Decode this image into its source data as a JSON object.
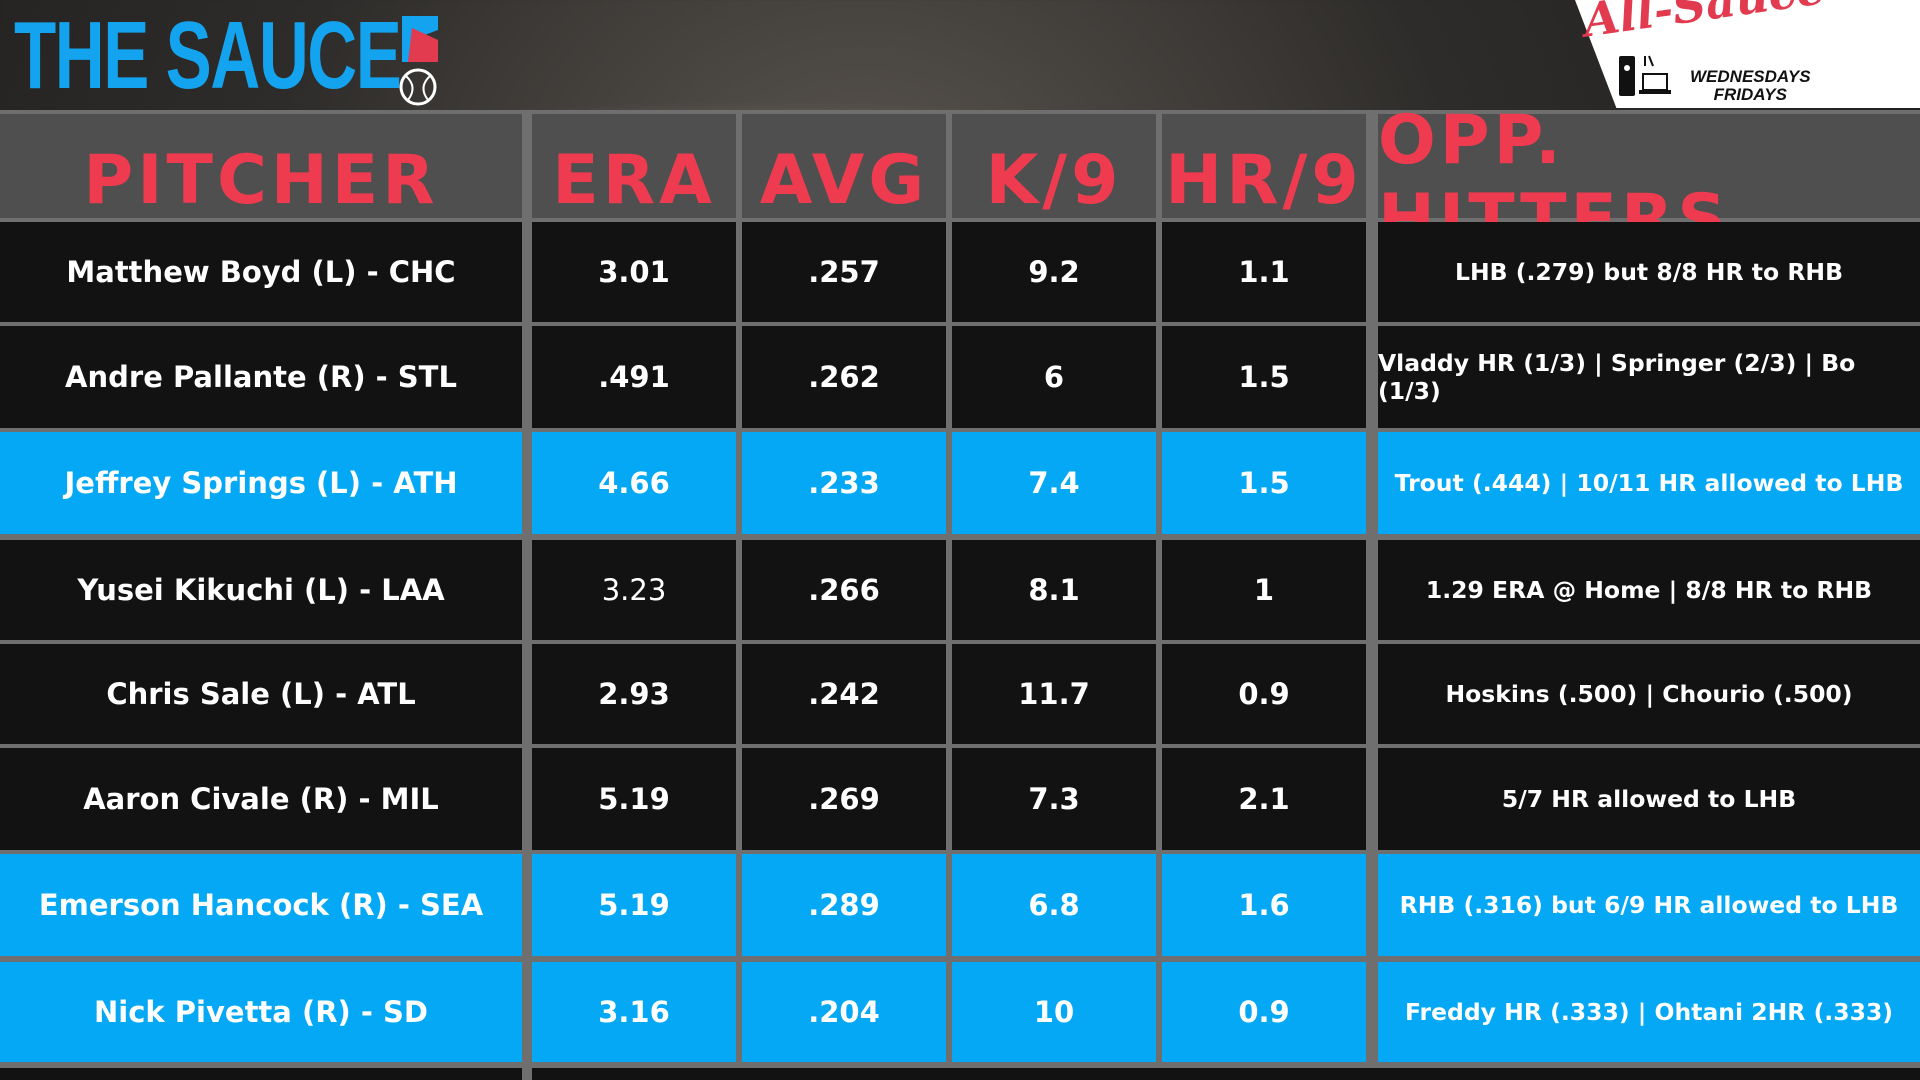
{
  "brand": {
    "title": "THE SAUCE"
  },
  "badge": {
    "script": "All-Sauce Team",
    "days": [
      "WEDNESDAYS",
      "FRIDAYS"
    ]
  },
  "colors": {
    "accent_blue": "#04a8f5",
    "header_red": "#ef3b50",
    "dark_row": "#121212"
  },
  "table": {
    "headers": [
      "PITCHER",
      "ERA",
      "AVG",
      "K/9",
      "HR/9",
      "OPP. HITTERS"
    ],
    "rows": [
      {
        "pitcher": "Matthew Boyd (L) - CHC",
        "era": "3.01",
        "avg": ".257",
        "k9": "9.2",
        "hr9": "1.1",
        "opp": "LHB (.279) but 8/8 HR to RHB",
        "highlight": false
      },
      {
        "pitcher": "Andre Pallante (R) - STL",
        "era": ".491",
        "avg": ".262",
        "k9": "6",
        "hr9": "1.5",
        "opp": "Vladdy HR (1/3) | Springer (2/3) | Bo (1/3)",
        "highlight": false
      },
      {
        "pitcher": "Jeffrey Springs (L) - ATH",
        "era": "4.66",
        "avg": ".233",
        "k9": "7.4",
        "hr9": "1.5",
        "opp": "Trout (.444) | 10/11 HR allowed to LHB",
        "highlight": true
      },
      {
        "pitcher": "Yusei Kikuchi (L) - LAA",
        "era": "3.23",
        "avg": ".266",
        "k9": "8.1",
        "hr9": "1",
        "opp": "1.29 ERA @ Home | 8/8 HR to RHB",
        "highlight": false
      },
      {
        "pitcher": "Chris Sale (L) - ATL",
        "era": "2.93",
        "avg": ".242",
        "k9": "11.7",
        "hr9": "0.9",
        "opp": "Hoskins (.500) | Chourio (.500)",
        "highlight": false
      },
      {
        "pitcher": "Aaron Civale (R) - MIL",
        "era": "5.19",
        "avg": ".269",
        "k9": "7.3",
        "hr9": "2.1",
        "opp": "5/7 HR allowed to LHB",
        "highlight": false
      },
      {
        "pitcher": "Emerson Hancock (R) - SEA",
        "era": "5.19",
        "avg": ".289",
        "k9": "6.8",
        "hr9": "1.6",
        "opp": "RHB (.316) but 6/9 HR allowed to LHB",
        "highlight": true
      },
      {
        "pitcher": "Nick Pivetta (R) - SD",
        "era": "3.16",
        "avg": ".204",
        "k9": "10",
        "hr9": "0.9",
        "opp": "Freddy HR (.333) | Ohtani 2HR (.333)",
        "highlight": true
      }
    ]
  }
}
